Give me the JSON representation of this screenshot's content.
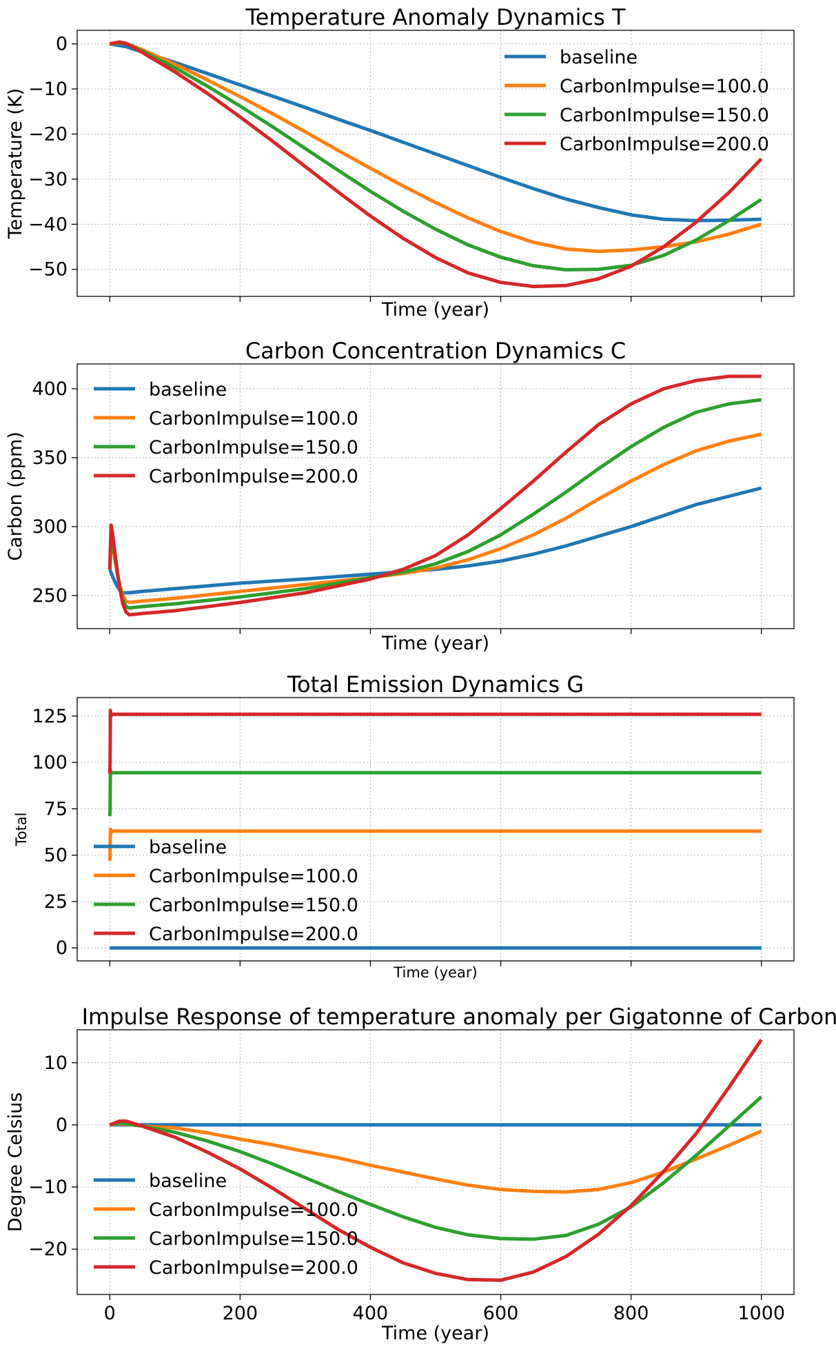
{
  "colors": {
    "baseline": "#1f77b4",
    "impulse_100": "#ff7f0e",
    "impulse_150": "#2ca02c",
    "impulse_200": "#d62728"
  },
  "chart_data": [
    {
      "type": "line",
      "title": "Temperature Anomaly Dynamics T",
      "xlabel": "Time (year)",
      "ylabel": "Temperature (K)",
      "xlim": [
        -50,
        1050
      ],
      "ylim": [
        -56,
        3
      ],
      "xticks": [
        0,
        200,
        400,
        600,
        800,
        1000
      ],
      "xticklabels": [],
      "yticks": [
        0,
        -10,
        -20,
        -30,
        -40,
        -50
      ],
      "yticklabels": [
        "0",
        "−10",
        "−20",
        "−30",
        "−40",
        "−50"
      ],
      "legend": "top-right",
      "grid": true,
      "series": [
        {
          "name": "baseline",
          "color_key": "baseline",
          "x": [
            0,
            25,
            50,
            100,
            150,
            200,
            250,
            300,
            350,
            400,
            450,
            500,
            550,
            600,
            650,
            700,
            750,
            800,
            850,
            900,
            950,
            1000
          ],
          "y": [
            0,
            -0.6,
            -1.8,
            -4.1,
            -6.6,
            -9.1,
            -11.6,
            -14.1,
            -16.7,
            -19.2,
            -21.8,
            -24.4,
            -27.0,
            -29.6,
            -32.1,
            -34.4,
            -36.3,
            -37.9,
            -38.9,
            -39.2,
            -39.1,
            -38.9
          ]
        },
        {
          "name": "CarbonImpulse=100.0",
          "color_key": "impulse_100",
          "x": [
            0,
            15,
            25,
            50,
            100,
            150,
            200,
            250,
            300,
            350,
            400,
            450,
            500,
            550,
            600,
            650,
            700,
            750,
            800,
            850,
            900,
            950,
            1000
          ],
          "y": [
            0,
            0.2,
            0.1,
            -1.3,
            -4.5,
            -8.0,
            -11.7,
            -15.5,
            -19.5,
            -23.6,
            -27.6,
            -31.5,
            -35.2,
            -38.6,
            -41.6,
            -44.0,
            -45.5,
            -46.0,
            -45.7,
            -45.0,
            -43.9,
            -42.2,
            -40.0
          ]
        },
        {
          "name": "CarbonImpulse=150.0",
          "color_key": "impulse_150",
          "x": [
            0,
            15,
            25,
            50,
            100,
            150,
            200,
            250,
            300,
            350,
            400,
            450,
            500,
            550,
            600,
            650,
            700,
            750,
            800,
            850,
            900,
            950,
            1000
          ],
          "y": [
            0,
            0.3,
            0.1,
            -1.6,
            -5.3,
            -9.4,
            -13.8,
            -18.4,
            -23.2,
            -28.0,
            -32.7,
            -37.1,
            -41.1,
            -44.6,
            -47.3,
            -49.2,
            -50.1,
            -50.0,
            -49.1,
            -46.9,
            -43.5,
            -39.2,
            -34.5
          ]
        },
        {
          "name": "CarbonImpulse=200.0",
          "color_key": "impulse_200",
          "x": [
            0,
            15,
            25,
            50,
            100,
            150,
            200,
            250,
            300,
            350,
            400,
            450,
            500,
            550,
            600,
            650,
            700,
            750,
            800,
            850,
            900,
            950,
            1000
          ],
          "y": [
            0,
            0.4,
            0.1,
            -1.9,
            -6.2,
            -11.0,
            -16.2,
            -21.6,
            -27.2,
            -32.8,
            -38.2,
            -43.1,
            -47.4,
            -50.8,
            -52.9,
            -53.8,
            -53.6,
            -52.1,
            -49.3,
            -45.0,
            -39.5,
            -33.0,
            -25.5
          ]
        }
      ]
    },
    {
      "type": "line",
      "title": "Carbon Concentration Dynamics C",
      "xlabel": "Time (year)",
      "ylabel": "Carbon (ppm)",
      "xlim": [
        -50,
        1050
      ],
      "ylim": [
        226,
        418
      ],
      "xticks": [
        0,
        200,
        400,
        600,
        800,
        1000
      ],
      "xticklabels": [],
      "yticks": [
        250,
        300,
        350,
        400
      ],
      "yticklabels": [
        "250",
        "300",
        "350",
        "400"
      ],
      "legend": "top-left",
      "grid": true,
      "series": [
        {
          "name": "baseline",
          "color_key": "baseline",
          "x": [
            0,
            5,
            10,
            15,
            20,
            30,
            50,
            100,
            200,
            300,
            400,
            500,
            550,
            600,
            650,
            700,
            750,
            800,
            850,
            900,
            950,
            1000
          ],
          "y": [
            269,
            263,
            258,
            254,
            252,
            252,
            253,
            255,
            259,
            262,
            265.5,
            269,
            271.5,
            275,
            280,
            286,
            293,
            300,
            308,
            316,
            322,
            328
          ]
        },
        {
          "name": "CarbonImpulse=100.0",
          "color_key": "impulse_100",
          "x": [
            0,
            2,
            4,
            8,
            12,
            16,
            20,
            25,
            30,
            50,
            100,
            200,
            300,
            400,
            450,
            500,
            550,
            600,
            650,
            700,
            750,
            800,
            850,
            900,
            950,
            1000
          ],
          "y": [
            269,
            293,
            288,
            276,
            265,
            256,
            250,
            246,
            245,
            246,
            248,
            253,
            258,
            263,
            266,
            270,
            276,
            284,
            294,
            306,
            320,
            333,
            345,
            355,
            362,
            367
          ]
        },
        {
          "name": "CarbonImpulse=150.0",
          "color_key": "impulse_150",
          "x": [
            0,
            2,
            4,
            8,
            12,
            16,
            20,
            25,
            30,
            50,
            100,
            200,
            300,
            400,
            450,
            500,
            550,
            600,
            650,
            700,
            750,
            800,
            850,
            900,
            950,
            1000
          ],
          "y": [
            269,
            297,
            292,
            278,
            265,
            255,
            247,
            242,
            241,
            242,
            244,
            249,
            255,
            263,
            267,
            273,
            282,
            294,
            309,
            325,
            342,
            358,
            372,
            383,
            389,
            392
          ]
        },
        {
          "name": "CarbonImpulse=200.0",
          "color_key": "impulse_200",
          "x": [
            0,
            2,
            4,
            8,
            12,
            16,
            20,
            25,
            30,
            50,
            100,
            200,
            300,
            400,
            450,
            500,
            550,
            600,
            650,
            700,
            750,
            800,
            850,
            900,
            950,
            1000
          ],
          "y": [
            269,
            301,
            296,
            281,
            266,
            254,
            244,
            238,
            236,
            237,
            239,
            245,
            252,
            262,
            269,
            279,
            294,
            313,
            333,
            354,
            374,
            389,
            400,
            406,
            409,
            409
          ]
        }
      ]
    },
    {
      "type": "line",
      "title": "Total Emission Dynamics G",
      "xlabel": "Time (year)",
      "ylabel": "Total",
      "xlim": [
        -50,
        1050
      ],
      "ylim": [
        -7,
        135
      ],
      "xticks": [
        0,
        200,
        400,
        600,
        800,
        1000
      ],
      "xticklabels": [],
      "yticks": [
        0,
        25,
        50,
        75,
        100,
        125
      ],
      "yticklabels": [
        "0",
        "25",
        "50",
        "75",
        "100",
        "125"
      ],
      "legend": "bottom-left",
      "grid": true,
      "series": [
        {
          "name": "baseline",
          "color_key": "baseline",
          "x": [
            0,
            1000
          ],
          "y": [
            0,
            0
          ]
        },
        {
          "name": "CarbonImpulse=100.0",
          "color_key": "impulse_100",
          "x": [
            0,
            0.5,
            1,
            2,
            3,
            1000
          ],
          "y": [
            47,
            50,
            64,
            62,
            63,
            63
          ]
        },
        {
          "name": "CarbonImpulse=150.0",
          "color_key": "impulse_150",
          "x": [
            0,
            0.5,
            1,
            2,
            3,
            1000
          ],
          "y": [
            71,
            75,
            96,
            94,
            94.5,
            94.5
          ]
        },
        {
          "name": "CarbonImpulse=200.0",
          "color_key": "impulse_200",
          "x": [
            0,
            0.5,
            1,
            2,
            3,
            1000
          ],
          "y": [
            94,
            100,
            128,
            125,
            126,
            126
          ]
        }
      ]
    },
    {
      "type": "line",
      "title": "Impulse Response of temperature anomaly per Gigatonne of Carbon",
      "xlabel": "Time (year)",
      "ylabel": "Degree Celsius",
      "xlim": [
        -50,
        1050
      ],
      "ylim": [
        -27.3,
        15.3
      ],
      "xticks": [
        0,
        200,
        400,
        600,
        800,
        1000
      ],
      "xticklabels": [
        "0",
        "200",
        "400",
        "600",
        "800",
        "1000"
      ],
      "yticks": [
        10,
        0,
        -10,
        -20
      ],
      "yticklabels": [
        "10",
        "0",
        "−10",
        "−20"
      ],
      "legend": "bottom-left",
      "grid": true,
      "series": [
        {
          "name": "baseline",
          "color_key": "baseline",
          "x": [
            0,
            1000
          ],
          "y": [
            0,
            0
          ]
        },
        {
          "name": "CarbonImpulse=100.0",
          "color_key": "impulse_100",
          "x": [
            0,
            15,
            25,
            50,
            100,
            150,
            200,
            250,
            300,
            350,
            400,
            450,
            500,
            550,
            600,
            650,
            700,
            750,
            800,
            850,
            900,
            950,
            1000
          ],
          "y": [
            0,
            0.2,
            0.1,
            -0.2,
            -0.5,
            -1.3,
            -2.3,
            -3.2,
            -4.3,
            -5.3,
            -6.5,
            -7.6,
            -8.7,
            -9.7,
            -10.4,
            -10.7,
            -10.8,
            -10.4,
            -9.3,
            -7.6,
            -5.5,
            -3.3,
            -1.0
          ]
        },
        {
          "name": "CarbonImpulse=150.0",
          "color_key": "impulse_150",
          "x": [
            0,
            15,
            25,
            50,
            100,
            150,
            200,
            250,
            300,
            350,
            400,
            450,
            500,
            550,
            600,
            650,
            700,
            750,
            800,
            850,
            900,
            950,
            1000
          ],
          "y": [
            0,
            0.3,
            0.2,
            -0.2,
            -1.2,
            -2.6,
            -4.3,
            -6.3,
            -8.5,
            -10.7,
            -12.8,
            -14.8,
            -16.5,
            -17.7,
            -18.3,
            -18.4,
            -17.8,
            -16.0,
            -13.2,
            -9.3,
            -4.9,
            -0.2,
            4.5
          ]
        },
        {
          "name": "CarbonImpulse=200.0",
          "color_key": "impulse_200",
          "x": [
            0,
            15,
            25,
            50,
            100,
            150,
            200,
            250,
            300,
            350,
            400,
            450,
            500,
            550,
            600,
            650,
            700,
            750,
            800,
            850,
            900,
            950,
            1000
          ],
          "y": [
            0,
            0.6,
            0.6,
            -0.2,
            -2.0,
            -4.4,
            -7.1,
            -10.2,
            -13.5,
            -16.8,
            -19.7,
            -22.2,
            -23.9,
            -24.9,
            -25.0,
            -23.7,
            -21.2,
            -17.6,
            -13.0,
            -7.5,
            -1.4,
            6.0,
            13.7
          ]
        }
      ]
    }
  ]
}
